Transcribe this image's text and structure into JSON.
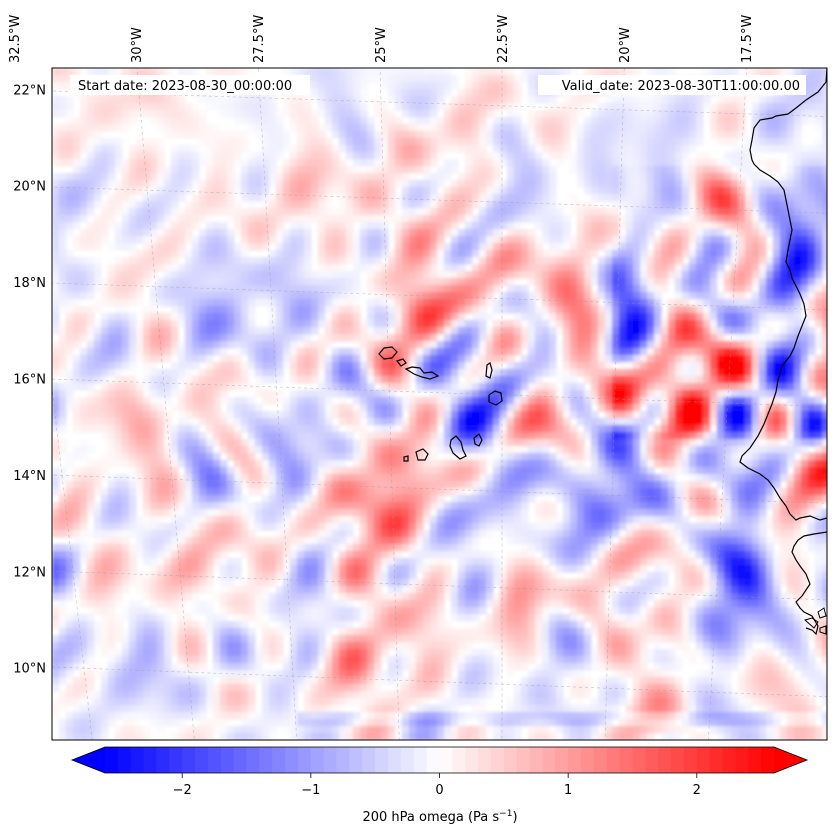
{
  "header": {
    "start_date": "Start date: 2023-08-30_00:00:00",
    "valid_date": "Valid_date: 2023-08-30T11:00:00.00"
  },
  "map": {
    "projection": "lambert-conformal",
    "extent_lon": [
      -32.5,
      -16.0
    ],
    "extent_lat": [
      9.0,
      22.7
    ],
    "longitude_labels": [
      {
        "lon": -32.5,
        "text": "32.5°W"
      },
      {
        "lon": -30.0,
        "text": "30°W"
      },
      {
        "lon": -27.5,
        "text": "27.5°W"
      },
      {
        "lon": -25.0,
        "text": "25°W"
      },
      {
        "lon": -22.5,
        "text": "22.5°W"
      },
      {
        "lon": -20.0,
        "text": "20°W"
      },
      {
        "lon": -17.5,
        "text": "17.5°W"
      }
    ],
    "latitude_labels": [
      {
        "lat": 22,
        "text": "22°N"
      },
      {
        "lat": 20,
        "text": "20°N"
      },
      {
        "lat": 18,
        "text": "18°N"
      },
      {
        "lat": 16,
        "text": "16°N"
      },
      {
        "lat": 14,
        "text": "14°N"
      },
      {
        "lat": 12,
        "text": "12°N"
      },
      {
        "lat": 10,
        "text": "10°N"
      }
    ],
    "gridlines": true,
    "coastline_color": "#000000"
  },
  "field": {
    "variable": "200 hPa omega",
    "units": "Pa s-1",
    "colormap": "bwr",
    "vmin": -2.6,
    "vmax": 2.6,
    "extend": "both",
    "colors": {
      "negative": "#0000ff",
      "zero": "#ffffff",
      "positive": "#ff0000"
    }
  },
  "colorbar": {
    "ticks": [
      {
        "value": -2,
        "text": "−2"
      },
      {
        "value": -1,
        "text": "−1"
      },
      {
        "value": 0,
        "text": "0"
      },
      {
        "value": 1,
        "text": "1"
      },
      {
        "value": 2,
        "text": "2"
      }
    ],
    "label_main": "200 hPa omega (Pa s",
    "label_sup": "−1",
    "label_end": ")"
  }
}
